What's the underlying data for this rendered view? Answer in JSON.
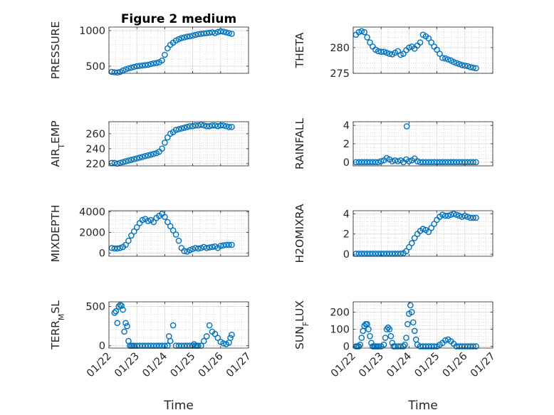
{
  "figure_title": "Figure 2 medium",
  "colors": {
    "marker": "#0072BD",
    "axes": "#262626",
    "grid": "#dfdfdf",
    "minor_grid": "#bdbdbd"
  },
  "chart_data": [
    {
      "type": "scatter",
      "ylabel": "PRESSURE",
      "ylim": [
        400,
        1050
      ],
      "yticks": [
        500,
        1000
      ],
      "ytick_labels": [
        "500",
        "1000"
      ],
      "xlim": [
        0,
        5
      ],
      "grid": true,
      "minor_grid": true,
      "x": [
        0.1,
        0.2,
        0.3,
        0.4,
        0.5,
        0.6,
        0.7,
        0.8,
        0.9,
        1,
        1.1,
        1.2,
        1.3,
        1.4,
        1.5,
        1.6,
        1.7,
        1.8,
        1.9,
        2,
        2.1,
        2.2,
        2.3,
        2.4,
        2.5,
        2.6,
        2.7,
        2.8,
        2.9,
        3,
        3.1,
        3.2,
        3.3,
        3.4,
        3.5,
        3.6,
        3.7,
        3.8,
        3.9,
        4,
        4.1,
        4.2,
        4.3,
        4.4
      ],
      "y": [
        420,
        415,
        412,
        420,
        440,
        455,
        470,
        480,
        490,
        500,
        505,
        510,
        515,
        520,
        530,
        540,
        545,
        555,
        580,
        660,
        750,
        800,
        830,
        860,
        880,
        895,
        905,
        915,
        920,
        930,
        940,
        950,
        955,
        960,
        965,
        970,
        975,
        965,
        980,
        990,
        985,
        975,
        965,
        955
      ]
    },
    {
      "type": "scatter",
      "ylabel": "THETA",
      "ylim": [
        275,
        284
      ],
      "yticks": [
        275,
        280
      ],
      "ytick_labels": [
        "275",
        "280"
      ],
      "xlim": [
        0,
        5
      ],
      "grid": true,
      "minor_grid": true,
      "x": [
        0.1,
        0.2,
        0.3,
        0.4,
        0.5,
        0.6,
        0.7,
        0.8,
        0.9,
        1,
        1.1,
        1.2,
        1.3,
        1.4,
        1.5,
        1.6,
        1.7,
        1.8,
        1.9,
        2,
        2.1,
        2.2,
        2.3,
        2.4,
        2.5,
        2.6,
        2.7,
        2.8,
        2.9,
        3,
        3.1,
        3.2,
        3.3,
        3.4,
        3.5,
        3.6,
        3.7,
        3.8,
        3.9,
        4,
        4.1,
        4.2,
        4.3,
        4.4
      ],
      "y": [
        282.5,
        283,
        283.2,
        283,
        282,
        281,
        280.2,
        279.6,
        279.3,
        279.2,
        279.2,
        279,
        278.8,
        278.7,
        279,
        279.3,
        278.6,
        278.8,
        279.5,
        280,
        280.2,
        279.8,
        280.4,
        281,
        282.5,
        282.2,
        281.8,
        281,
        280.2,
        279.6,
        278.8,
        278,
        277.9,
        277.7,
        277.5,
        277.2,
        277,
        276.8,
        276.6,
        276.5,
        276.4,
        276.2,
        276.1,
        276
      ]
    },
    {
      "type": "scatter",
      "ylabel": "AIR",
      "ylabel_sub": "T",
      "ylabel_rest": "EMP",
      "ylim": [
        217,
        276
      ],
      "yticks": [
        220,
        240,
        260
      ],
      "ytick_labels": [
        "220",
        "240",
        "260"
      ],
      "xlim": [
        0,
        5
      ],
      "grid": true,
      "minor_grid": true,
      "x": [
        0.1,
        0.2,
        0.3,
        0.4,
        0.5,
        0.6,
        0.7,
        0.8,
        0.9,
        1,
        1.1,
        1.2,
        1.3,
        1.4,
        1.5,
        1.6,
        1.7,
        1.8,
        1.9,
        2,
        2.1,
        2.2,
        2.3,
        2.4,
        2.5,
        2.6,
        2.7,
        2.8,
        2.9,
        3,
        3.1,
        3.2,
        3.3,
        3.4,
        3.5,
        3.6,
        3.7,
        3.8,
        3.9,
        4,
        4.1,
        4.2,
        4.3,
        4.4
      ],
      "y": [
        221,
        221,
        220,
        221,
        222,
        223,
        224,
        225,
        226,
        227,
        228,
        229,
        230,
        231,
        232,
        233,
        234,
        236,
        240,
        248,
        255,
        260,
        262,
        265,
        266,
        267,
        268,
        269,
        270,
        270,
        271,
        271,
        272,
        271,
        270,
        270,
        271,
        271,
        270,
        271,
        271,
        270,
        269,
        269
      ]
    },
    {
      "type": "scatter",
      "ylabel": "RAINFALL",
      "ylim": [
        -0.4,
        4.4
      ],
      "yticks": [
        0,
        2,
        4
      ],
      "ytick_labels": [
        "0",
        "2",
        "4"
      ],
      "xlim": [
        0,
        5
      ],
      "grid": true,
      "minor_grid": true,
      "x": [
        0.1,
        0.2,
        0.3,
        0.4,
        0.5,
        0.6,
        0.7,
        0.8,
        0.9,
        1,
        1.1,
        1.2,
        1.3,
        1.4,
        1.5,
        1.6,
        1.7,
        1.8,
        1.9,
        2,
        2.1,
        2.2,
        2.3,
        2.4,
        2.5,
        2.6,
        2.7,
        2.8,
        2.9,
        3,
        3.1,
        3.2,
        3.3,
        3.4,
        3.5,
        3.6,
        3.7,
        3.8,
        3.9,
        4,
        4.1,
        4.2,
        4.3,
        4.4
      ],
      "y": [
        0,
        0,
        0,
        0,
        0,
        0,
        0,
        0,
        0,
        0.1,
        0.2,
        0.45,
        0.3,
        0.1,
        0.2,
        0.1,
        0.2,
        0,
        0.3,
        0.1,
        0.2,
        0.4,
        0.1,
        0,
        0,
        0,
        0,
        0,
        0,
        0,
        0,
        0,
        0,
        0,
        0,
        0,
        0,
        0,
        0,
        0,
        0,
        0,
        0,
        0
      ],
      "outlier": {
        "x": 1.92,
        "y": 3.9
      }
    },
    {
      "type": "scatter",
      "ylabel": "MIXDEPTH",
      "ylim": [
        -300,
        4100
      ],
      "yticks": [
        0,
        2000,
        4000
      ],
      "ytick_labels": [
        "0",
        "2000",
        "4000"
      ],
      "xlim": [
        0,
        5
      ],
      "grid": true,
      "minor_grid": true,
      "x": [
        0.1,
        0.2,
        0.3,
        0.4,
        0.5,
        0.6,
        0.7,
        0.8,
        0.9,
        1,
        1.1,
        1.2,
        1.3,
        1.4,
        1.5,
        1.6,
        1.7,
        1.8,
        1.9,
        2,
        2.1,
        2.2,
        2.3,
        2.4,
        2.5,
        2.6,
        2.7,
        2.8,
        2.9,
        3,
        3.1,
        3.2,
        3.3,
        3.4,
        3.5,
        3.6,
        3.7,
        3.8,
        3.9,
        4,
        4.1,
        4.2,
        4.3,
        4.4
      ],
      "y": [
        500,
        450,
        450,
        500,
        600,
        800,
        1200,
        1700,
        2100,
        2500,
        2900,
        3200,
        3300,
        3100,
        3200,
        3000,
        3400,
        3600,
        3800,
        3500,
        3000,
        2600,
        2200,
        1800,
        1200,
        500,
        200,
        150,
        300,
        400,
        500,
        450,
        500,
        600,
        500,
        550,
        600,
        650,
        500,
        700,
        750,
        800,
        800,
        800
      ]
    },
    {
      "type": "scatter",
      "ylabel": "H2OMIXRA",
      "ylim": [
        -0.2,
        4.3
      ],
      "yticks": [
        0,
        2,
        4
      ],
      "ytick_labels": [
        "0",
        "2",
        "4"
      ],
      "xlim": [
        0,
        5
      ],
      "grid": true,
      "minor_grid": true,
      "x": [
        0.1,
        0.2,
        0.3,
        0.4,
        0.5,
        0.6,
        0.7,
        0.8,
        0.9,
        1,
        1.1,
        1.2,
        1.3,
        1.4,
        1.5,
        1.6,
        1.7,
        1.8,
        1.9,
        2,
        2.1,
        2.2,
        2.3,
        2.4,
        2.5,
        2.6,
        2.7,
        2.8,
        2.9,
        3,
        3.1,
        3.2,
        3.3,
        3.4,
        3.5,
        3.6,
        3.7,
        3.8,
        3.9,
        4,
        4.1,
        4.2,
        4.3,
        4.4
      ],
      "y": [
        0.05,
        0.05,
        0.05,
        0.05,
        0.05,
        0.05,
        0.05,
        0.05,
        0.05,
        0.05,
        0.05,
        0.05,
        0.05,
        0.05,
        0.05,
        0.05,
        0.05,
        0.1,
        0.3,
        0.7,
        1.1,
        1.6,
        2,
        2.3,
        2.5,
        2.4,
        2.2,
        2.6,
        3,
        3.4,
        3.7,
        3.9,
        3.8,
        3.8,
        3.9,
        4,
        3.9,
        3.8,
        3.7,
        3.8,
        3.7,
        3.6,
        3.6,
        3.6
      ]
    },
    {
      "type": "scatter",
      "ylabel": "TERR",
      "ylabel_sub": "M",
      "ylabel_rest": "SL",
      "ylim": [
        -30,
        560
      ],
      "yticks": [
        0,
        500
      ],
      "ytick_labels": [
        "0",
        "500"
      ],
      "xlim": [
        0,
        5
      ],
      "grid": true,
      "minor_grid": true,
      "x": [
        0.2,
        0.25,
        0.3,
        0.35,
        0.4,
        0.45,
        0.5,
        0.55,
        0.6,
        0.65,
        0.7,
        0.75,
        0.8,
        0.85,
        0.9,
        1,
        1.1,
        1.2,
        1.3,
        1.4,
        1.5,
        1.6,
        1.7,
        1.8,
        1.9,
        2.0,
        2.1,
        2.15,
        2.2,
        2.3,
        2.4,
        2.5,
        2.6,
        2.7,
        2.8,
        2.9,
        3.0,
        3.05,
        3.1,
        3.15,
        3.2,
        3.3,
        3.4,
        3.5,
        3.6,
        3.7,
        3.8,
        3.9,
        4.0,
        4.1,
        4.2,
        4.3,
        4.35,
        4.4
      ],
      "y": [
        420,
        440,
        290,
        500,
        520,
        510,
        460,
        180,
        290,
        250,
        60,
        0,
        0,
        0,
        0,
        0,
        0,
        0,
        0,
        0,
        0,
        0,
        0,
        0,
        0,
        0,
        0,
        120,
        60,
        260,
        0,
        0,
        0,
        0,
        0,
        0,
        0,
        20,
        0,
        0,
        0,
        0,
        60,
        120,
        260,
        180,
        150,
        100,
        50,
        30,
        20,
        40,
        100,
        140
      ]
    },
    {
      "type": "scatter",
      "ylabel": "SUN",
      "ylabel_sub": "F",
      "ylabel_rest": "LUX",
      "ylim": [
        -10,
        260
      ],
      "yticks": [
        0,
        100,
        200
      ],
      "ytick_labels": [
        "0",
        "100",
        "200"
      ],
      "xlim": [
        0,
        5
      ],
      "grid": true,
      "minor_grid": true,
      "x": [
        0.1,
        0.15,
        0.2,
        0.25,
        0.3,
        0.35,
        0.4,
        0.45,
        0.5,
        0.55,
        0.6,
        0.65,
        0.7,
        0.75,
        0.8,
        0.85,
        0.9,
        1.0,
        1.1,
        1.15,
        1.2,
        1.25,
        1.3,
        1.35,
        1.4,
        1.45,
        1.5,
        1.6,
        1.7,
        1.8,
        1.85,
        1.9,
        1.95,
        2.0,
        2.05,
        2.1,
        2.15,
        2.2,
        2.25,
        2.3,
        2.4,
        2.5,
        2.6,
        2.7,
        2.8,
        2.9,
        3.0,
        3.1,
        3.2,
        3.3,
        3.4,
        3.5,
        3.6,
        3.7,
        3.8,
        3.9,
        4.0,
        4.1,
        4.2,
        4.3,
        4.4
      ],
      "y": [
        0,
        0,
        0,
        10,
        50,
        90,
        120,
        130,
        130,
        100,
        60,
        20,
        0,
        0,
        0,
        0,
        0,
        0,
        10,
        50,
        100,
        110,
        100,
        60,
        20,
        0,
        0,
        0,
        0,
        0,
        10,
        50,
        130,
        190,
        240,
        200,
        140,
        90,
        40,
        10,
        0,
        0,
        0,
        0,
        0,
        0,
        0,
        10,
        20,
        35,
        40,
        30,
        15,
        0,
        0,
        0,
        0,
        0,
        0,
        0,
        0
      ]
    }
  ],
  "xtick_labels": [
    "01/22",
    "01/23",
    "01/24",
    "01/25",
    "01/26",
    "01/27"
  ],
  "xlabel": "Time"
}
